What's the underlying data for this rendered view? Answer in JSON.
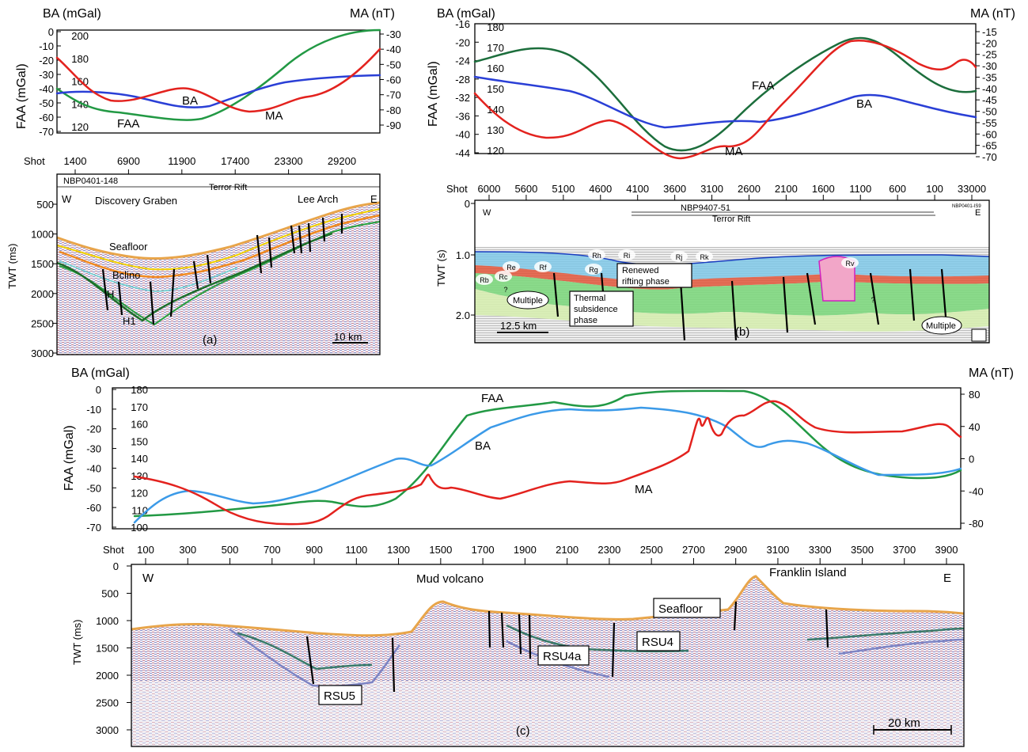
{
  "colors": {
    "faa": "#229944",
    "faa_b": "#1c6e3c",
    "ba": "#2a3fd6",
    "ba_c": "#3b9ae8",
    "ma": "#e3221e",
    "seafloor": "#e8a54a"
  },
  "panel_a": {
    "left_axis_outer": "BA (mGal)",
    "left_axis_inner": "FAA (mGal)",
    "right_axis": "MA (nT)",
    "faa_ticks": [
      "0",
      "-10",
      "-20",
      "-30",
      "-40",
      "-50",
      "-60",
      "-70"
    ],
    "ba_ticks": [
      "200",
      "180",
      "160",
      "140",
      "120"
    ],
    "ma_ticks": [
      "-30",
      "-40",
      "-50",
      "-60",
      "-70",
      "-80",
      "-90"
    ],
    "shot_label": "Shot",
    "shots": [
      "1400",
      "6900",
      "11900",
      "17400",
      "23300",
      "29200"
    ],
    "curve_labels": {
      "ba": "BA",
      "ma": "MA",
      "faa": "FAA"
    },
    "twt_label": "TWT (ms)",
    "twt_ticks": [
      "500",
      "1000",
      "1500",
      "2000",
      "2500",
      "3000"
    ],
    "line": "NBP0401-148",
    "rift": "Terror Rift",
    "west": "W",
    "east": "E",
    "graben": "Discovery Graben",
    "arch": "Lee Arch",
    "horizons": {
      "seafloor": "Seafloor",
      "bclino": "Bclino",
      "h": "H",
      "h1": "H1"
    },
    "scale": "10 km",
    "tag": "(a)"
  },
  "panel_b": {
    "left_axis_outer": "BA (mGal)",
    "left_axis_inner": "FAA (mGal)",
    "right_axis": "MA (nT)",
    "faa_ticks": [
      "-16",
      "-20",
      "-24",
      "-28",
      "-32",
      "-36",
      "-40",
      "-44"
    ],
    "ba_ticks": [
      "180",
      "170",
      "160",
      "150",
      "140",
      "130",
      "120"
    ],
    "ma_ticks": [
      "-15",
      "-20",
      "-25",
      "-30",
      "-35",
      "-40",
      "-45",
      "-50",
      "-55",
      "-60",
      "-65",
      "-70"
    ],
    "shot_label": "Shot",
    "shots": [
      "6000",
      "5600",
      "5100",
      "4600",
      "4100",
      "3600",
      "3100",
      "2600",
      "2100",
      "1600",
      "1100",
      "600",
      "100",
      "33000"
    ],
    "curve_labels": {
      "faa": "FAA",
      "ba": "BA",
      "ma": "MA"
    },
    "twt_label": "TWT (s)",
    "twt_ticks": [
      "0",
      "1.0",
      "2.0"
    ],
    "line": "NBP9407-51",
    "rift": "Terror Rift",
    "side_line": "NBP0401-IS9",
    "west": "W",
    "east": "E",
    "units": [
      "Rb",
      "Rc",
      "Re",
      "Rf",
      "Rg",
      "Rh",
      "Ri",
      "Rj",
      "Rk",
      "Rv",
      "?",
      "?"
    ],
    "renewed": [
      "Renewed",
      "rifting phase"
    ],
    "thermal": [
      "Thermal",
      "subsidence",
      "phase"
    ],
    "multiple": "Multiple",
    "scale": "12.5 km",
    "tag": "(b)"
  },
  "panel_c": {
    "left_axis_outer": "BA (mGal)",
    "left_axis_inner": "FAA (mGal)",
    "right_axis": "MA (nT)",
    "faa_ticks": [
      "0",
      "-10",
      "-20",
      "-30",
      "-40",
      "-50",
      "-60",
      "-70"
    ],
    "ba_ticks": [
      "180",
      "170",
      "160",
      "150",
      "140",
      "130",
      "120",
      "110",
      "100"
    ],
    "ma_ticks": [
      "80",
      "40",
      "0",
      "-40",
      "-80"
    ],
    "curve_labels": {
      "faa": "FAA",
      "ba": "BA",
      "ma": "MA"
    },
    "shot_label": "Shot",
    "shots": [
      "100",
      "300",
      "500",
      "700",
      "900",
      "1100",
      "1300",
      "1500",
      "1700",
      "1900",
      "2100",
      "2300",
      "2500",
      "2700",
      "2900",
      "3100",
      "3300",
      "3500",
      "3700",
      "3900"
    ],
    "twt_label": "TWT (ms)",
    "twt_ticks": [
      "0",
      "500",
      "1000",
      "1500",
      "2000",
      "2500",
      "3000"
    ],
    "west": "W",
    "east": "E",
    "mud_volcano": "Mud volcano",
    "island": "Franklin Island",
    "horizons": {
      "seafloor": "Seafloor",
      "rsu4": "RSU4",
      "rsu4a": "RSU4a",
      "rsu5": "RSU5"
    },
    "scale": "20 km",
    "tag": "(c)"
  }
}
